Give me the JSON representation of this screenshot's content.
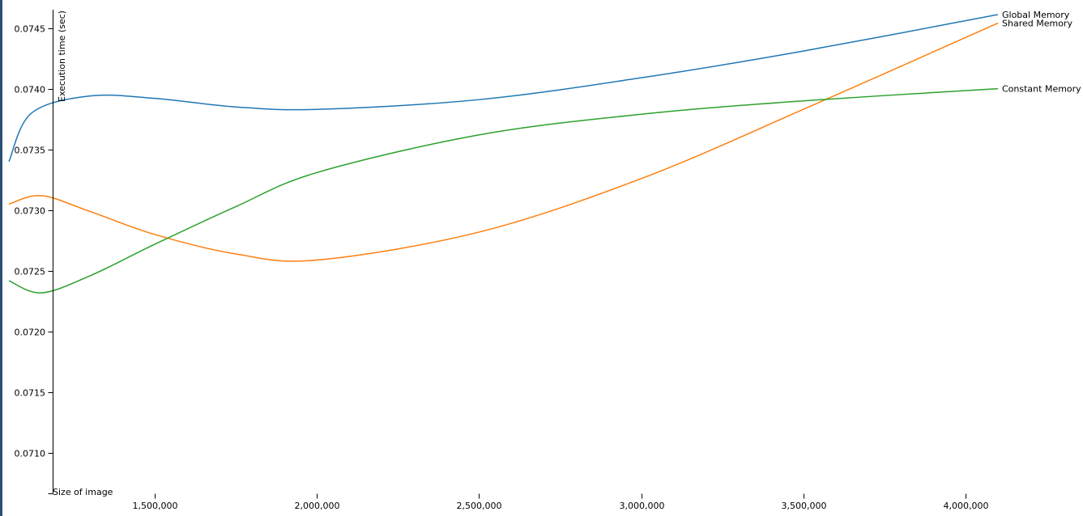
{
  "chart_data": {
    "type": "line",
    "xlabel": "Size of image",
    "ylabel": "Execution time (sec)",
    "xlim": [
      1050000,
      4100000
    ],
    "ylim": [
      0.07067,
      0.07465
    ],
    "x_ticks": [
      1500000,
      2000000,
      2500000,
      3000000,
      3500000,
      4000000
    ],
    "x_tick_labels": [
      "1,500,000",
      "2,000,000",
      "2,500,000",
      "3,000,000",
      "3,500,000",
      "4,000,000"
    ],
    "y_ticks": [
      0.071,
      0.0715,
      0.072,
      0.0725,
      0.073,
      0.0735,
      0.074,
      0.0745
    ],
    "y_tick_labels": [
      "0.0710",
      "0.0715",
      "0.0720",
      "0.0725",
      "0.0730",
      "0.0735",
      "0.0740",
      "0.0745"
    ],
    "grid": false,
    "legend": "inline-right",
    "series": [
      {
        "name": "Global Memory",
        "color": "#1f77b4",
        "x": [
          1050000,
          1120000,
          1300000,
          1500000,
          1750000,
          2000000,
          2500000,
          3000000,
          3500000,
          4100000
        ],
        "values": [
          0.0734,
          0.0738,
          0.07394,
          0.07392,
          0.07385,
          0.07383,
          0.07391,
          0.07409,
          0.07431,
          0.07461
        ]
      },
      {
        "name": "Shared Memory",
        "color": "#ff7f0e",
        "x": [
          1050000,
          1150000,
          1300000,
          1500000,
          1750000,
          2000000,
          2500000,
          3000000,
          3500000,
          4100000
        ],
        "values": [
          0.07305,
          0.07312,
          0.07299,
          0.0728,
          0.07264,
          0.07259,
          0.07282,
          0.07326,
          0.07383,
          0.07454
        ]
      },
      {
        "name": "Constant Memory",
        "color": "#2ca02c",
        "x": [
          1050000,
          1150000,
          1300000,
          1500000,
          1750000,
          2000000,
          2500000,
          3000000,
          3500000,
          4100000
        ],
        "values": [
          0.07242,
          0.07232,
          0.07246,
          0.07272,
          0.07303,
          0.07331,
          0.07362,
          0.07379,
          0.0739,
          0.074
        ]
      }
    ]
  }
}
